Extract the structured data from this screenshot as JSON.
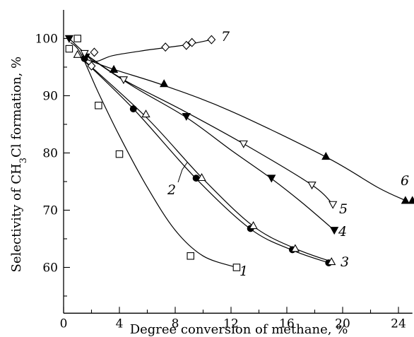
{
  "chart_data": {
    "type": "scatter",
    "xlabel": "Degree conversion of  methane, %",
    "ylabel_parts": [
      "Selectivity of  CH",
      "3",
      "Cl formation, %"
    ],
    "xlim": [
      0,
      25
    ],
    "ylim": [
      52,
      105
    ],
    "xticks": [
      0,
      4,
      8,
      12,
      16,
      20,
      24
    ],
    "yticks": [
      60,
      70,
      80,
      90,
      100
    ],
    "grid": false,
    "series": [
      {
        "name": "1",
        "marker": "square-open",
        "points": [
          [
            0.4,
            98.2
          ],
          [
            1.0,
            100.0
          ],
          [
            2.5,
            88.3
          ],
          [
            4.0,
            79.8
          ],
          [
            9.1,
            62.0
          ],
          [
            12.4,
            60.0
          ]
        ],
        "curve": [
          [
            0.5,
            99.3
          ],
          [
            1.2,
            97.5
          ],
          [
            2.5,
            90.5
          ],
          [
            4.0,
            83.0
          ],
          [
            6.0,
            74.0
          ],
          [
            8.0,
            66.5
          ],
          [
            10.0,
            62.0
          ],
          [
            12.4,
            60.0
          ]
        ]
      },
      {
        "name": "2",
        "marker": "circle-filled",
        "points": [
          [
            1.5,
            96.5
          ],
          [
            5.0,
            87.7
          ],
          [
            9.5,
            75.6
          ],
          [
            13.4,
            66.8
          ],
          [
            16.4,
            63.1
          ],
          [
            19.0,
            60.8
          ]
        ],
        "curve": [
          [
            1.0,
            97.2
          ],
          [
            5.0,
            87.7
          ],
          [
            9.5,
            75.5
          ],
          [
            13.4,
            66.7
          ],
          [
            16.4,
            63.0
          ],
          [
            19.0,
            60.8
          ]
        ]
      },
      {
        "name": "3",
        "marker": "triangle-up-open",
        "points": [
          [
            1.0,
            97.2
          ],
          [
            5.9,
            86.8
          ],
          [
            9.9,
            75.7
          ],
          [
            13.6,
            67.3
          ],
          [
            16.6,
            63.3
          ],
          [
            19.2,
            61.0
          ]
        ],
        "curve": [
          [
            1.0,
            97.2
          ],
          [
            5.9,
            86.3
          ],
          [
            9.9,
            75.7
          ],
          [
            13.6,
            67.2
          ],
          [
            16.6,
            63.3
          ],
          [
            19.2,
            61.0
          ]
        ]
      },
      {
        "name": "4",
        "marker": "triangle-down-filled",
        "points": [
          [
            0.4,
            100.0
          ],
          [
            1.6,
            96.8
          ],
          [
            8.8,
            86.4
          ],
          [
            14.9,
            75.6
          ],
          [
            19.4,
            66.5
          ]
        ],
        "curve": [
          [
            0.4,
            100.0
          ],
          [
            2.0,
            96.5
          ],
          [
            5.0,
            91.6
          ],
          [
            8.8,
            86.2
          ],
          [
            12.0,
            80.5
          ],
          [
            14.9,
            75.5
          ],
          [
            17.0,
            71.5
          ],
          [
            19.4,
            66.5
          ]
        ]
      },
      {
        "name": "5",
        "marker": "triangle-down-open",
        "points": [
          [
            1.5,
            97.4
          ],
          [
            4.3,
            92.8
          ],
          [
            12.9,
            81.6
          ],
          [
            17.8,
            74.4
          ],
          [
            19.3,
            71.0
          ]
        ],
        "curve": [
          [
            1.5,
            97.4
          ],
          [
            4.3,
            92.8
          ],
          [
            8.5,
            87.5
          ],
          [
            12.9,
            81.6
          ],
          [
            17.8,
            74.4
          ],
          [
            19.3,
            71.0
          ]
        ]
      },
      {
        "name": "6",
        "marker": "triangle-up-filled",
        "points": [
          [
            3.6,
            94.6
          ],
          [
            7.2,
            92.1
          ],
          [
            18.8,
            79.4
          ],
          [
            24.5,
            71.7
          ],
          [
            25.0,
            71.7
          ]
        ],
        "curve": [
          [
            1.5,
            96.5
          ],
          [
            3.6,
            94.6
          ],
          [
            7.2,
            91.8
          ],
          [
            12.0,
            87.3
          ],
          [
            18.8,
            79.3
          ],
          [
            22.5,
            74.0
          ],
          [
            24.5,
            71.7
          ]
        ]
      },
      {
        "name": "7",
        "marker": "diamond-open",
        "points": [
          [
            2.0,
            95.2
          ],
          [
            2.2,
            97.6
          ],
          [
            7.3,
            98.5
          ],
          [
            8.8,
            98.8
          ],
          [
            9.2,
            99.3
          ],
          [
            10.6,
            99.8
          ]
        ],
        "curve": [
          [
            1.5,
            97.8
          ],
          [
            2.2,
            96.0
          ],
          [
            3.5,
            97.0
          ],
          [
            5.5,
            97.8
          ],
          [
            7.3,
            98.4
          ],
          [
            8.8,
            98.9
          ],
          [
            10.6,
            99.8
          ]
        ]
      }
    ]
  }
}
